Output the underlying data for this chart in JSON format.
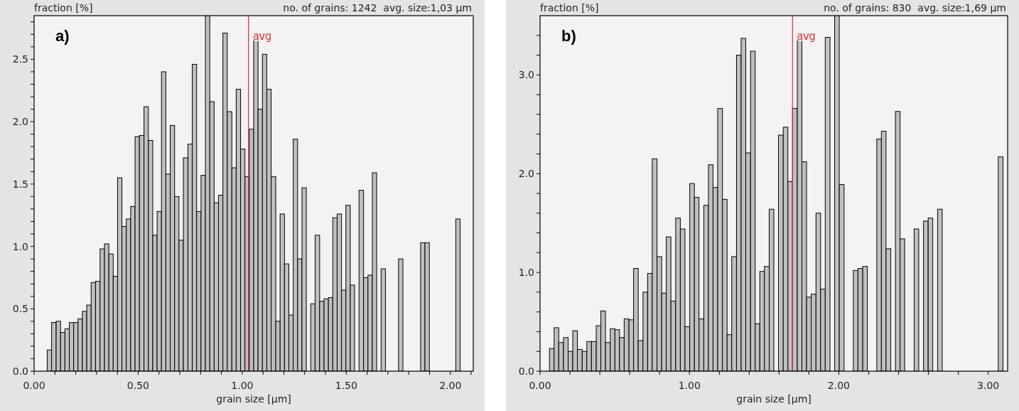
{
  "chart_data": [
    {
      "type": "histogram",
      "ylabel": "fraction [%]",
      "subtitle": "no. of grains: 1242  avg. size:1,03 µm",
      "xlabel": "grain size [µm]",
      "annotations": [
        "a)"
      ],
      "color": "#c0c0c0",
      "bins": [
        0.063,
        0.084,
        0.106,
        0.127,
        0.148,
        0.169,
        0.19,
        0.211,
        0.232,
        0.253,
        0.274,
        0.295,
        0.317,
        0.338,
        0.359,
        0.38,
        0.401,
        0.422,
        0.443,
        0.464,
        0.485,
        0.506,
        0.528,
        0.549,
        0.57,
        0.591,
        0.612,
        0.633,
        0.654,
        0.675,
        0.696,
        0.717,
        0.739,
        0.76,
        0.781,
        0.802,
        0.823,
        0.844,
        0.865,
        0.886,
        0.907,
        0.928,
        0.95,
        0.971,
        0.992,
        1.013,
        1.034,
        1.055,
        1.076,
        1.097,
        1.118,
        1.139,
        1.161,
        1.182,
        1.203,
        1.224,
        1.245,
        1.266,
        1.287,
        1.308,
        1.329,
        1.35,
        1.372,
        1.393,
        1.414,
        1.435,
        1.456,
        1.477,
        1.498,
        1.519,
        1.54,
        1.561,
        1.583,
        1.604,
        1.625,
        1.646,
        1.667,
        1.688,
        1.709,
        1.73,
        1.751,
        1.772,
        1.794,
        1.815,
        1.836,
        1.857,
        1.878,
        1.899,
        1.92,
        1.941,
        1.962,
        1.983,
        2.005,
        2.026,
        2.047
      ],
      "values": [
        0.17,
        0.39,
        0.4,
        0.31,
        0.34,
        0.39,
        0.39,
        0.42,
        0.48,
        0.53,
        0.71,
        0.72,
        0.98,
        1.02,
        0.94,
        0.76,
        1.55,
        1.16,
        1.22,
        1.32,
        1.88,
        1.89,
        2.12,
        1.85,
        1.09,
        1.28,
        2.4,
        1.58,
        1.97,
        1.4,
        1.05,
        1.71,
        1.82,
        2.46,
        1.28,
        1.57,
        2.85,
        2.16,
        1.35,
        1.41,
        2.71,
        2.08,
        1.63,
        2.26,
        1.78,
        1.56,
        1.94,
        2.66,
        2.1,
        2.54,
        2.26,
        1.56,
        0.4,
        1.26,
        0.86,
        0.45,
        1.86,
        0.9,
        1.47,
        0,
        0.54,
        1.09,
        0.56,
        0.58,
        0.59,
        1.23,
        1.26,
        0.65,
        1.33,
        0.69,
        0,
        1.45,
        0.75,
        0.77,
        1.59,
        0,
        0.82,
        0,
        0,
        0,
        0.9,
        0,
        0,
        0,
        0,
        1.03,
        1.03,
        0,
        0,
        0,
        0,
        0,
        0,
        1.22
      ],
      "xlim": [
        0,
        2.11
      ],
      "ylim": [
        0,
        2.85
      ],
      "xticks": [
        {
          "value": 0,
          "label": "0.00"
        },
        {
          "value": 0.1,
          "label": null
        },
        {
          "value": 0.2,
          "label": null
        },
        {
          "value": 0.3,
          "label": null
        },
        {
          "value": 0.4,
          "label": null
        },
        {
          "value": 0.5,
          "label": "0.50"
        },
        {
          "value": 0.6,
          "label": null
        },
        {
          "value": 0.7,
          "label": null
        },
        {
          "value": 0.8,
          "label": null
        },
        {
          "value": 0.9,
          "label": null
        },
        {
          "value": 1,
          "label": "1.00"
        },
        {
          "value": 1.1,
          "label": null
        },
        {
          "value": 1.2,
          "label": null
        },
        {
          "value": 1.3,
          "label": null
        },
        {
          "value": 1.4,
          "label": null
        },
        {
          "value": 1.5,
          "label": "1.50"
        },
        {
          "value": 1.6,
          "label": null
        },
        {
          "value": 1.7,
          "label": null
        },
        {
          "value": 1.8,
          "label": null
        },
        {
          "value": 1.9,
          "label": null
        },
        {
          "value": 2,
          "label": "2.00"
        },
        {
          "value": 2.1,
          "label": null
        }
      ],
      "yticks": [
        {
          "value": 0,
          "label": "0.0"
        },
        {
          "value": 0.1,
          "label": null
        },
        {
          "value": 0.2,
          "label": null
        },
        {
          "value": 0.3,
          "label": null
        },
        {
          "value": 0.4,
          "label": null
        },
        {
          "value": 0.5,
          "label": "0.5"
        },
        {
          "value": 0.6,
          "label": null
        },
        {
          "value": 0.7,
          "label": null
        },
        {
          "value": 0.8,
          "label": null
        },
        {
          "value": 0.9,
          "label": null
        },
        {
          "value": 1,
          "label": "1.0"
        },
        {
          "value": 1.1,
          "label": null
        },
        {
          "value": 1.2,
          "label": null
        },
        {
          "value": 1.3,
          "label": null
        },
        {
          "value": 1.4,
          "label": null
        },
        {
          "value": 1.5,
          "label": "1.5"
        },
        {
          "value": 1.6,
          "label": null
        },
        {
          "value": 1.7,
          "label": null
        },
        {
          "value": 1.8,
          "label": null
        },
        {
          "value": 1.9,
          "label": null
        },
        {
          "value": 2,
          "label": "2.0"
        },
        {
          "value": 2.1,
          "label": null
        },
        {
          "value": 2.2,
          "label": null
        },
        {
          "value": 2.3,
          "label": null
        },
        {
          "value": 2.4,
          "label": null
        },
        {
          "value": 2.5,
          "label": "2.5"
        },
        {
          "value": 2.6,
          "label": null
        },
        {
          "value": 2.7,
          "label": null
        },
        {
          "value": 2.8,
          "label": null
        }
      ],
      "ref_lines": [
        {
          "axis": "x",
          "value": 1.03,
          "label": "avg",
          "color": "#e03030"
        }
      ]
    },
    {
      "type": "histogram",
      "ylabel": "fraction [%]",
      "subtitle": "no. of grains: 830  avg. size:1,69 µm",
      "xlabel": "grain size [µm]",
      "annotations": [
        "b)"
      ],
      "color": "#c0c0c0",
      "bins": [
        0.063,
        0.094,
        0.125,
        0.157,
        0.188,
        0.219,
        0.25,
        0.282,
        0.313,
        0.344,
        0.376,
        0.407,
        0.438,
        0.47,
        0.501,
        0.532,
        0.563,
        0.595,
        0.626,
        0.657,
        0.689,
        0.72,
        0.751,
        0.783,
        0.814,
        0.845,
        0.876,
        0.908,
        0.939,
        0.97,
        1.002,
        1.033,
        1.064,
        1.096,
        1.127,
        1.158,
        1.189,
        1.221,
        1.252,
        1.283,
        1.315,
        1.346,
        1.377,
        1.409,
        1.44,
        1.471,
        1.502,
        1.534,
        1.565,
        1.596,
        1.628,
        1.659,
        1.69,
        1.722,
        1.753,
        1.784,
        1.815,
        1.847,
        1.878,
        1.909,
        1.941,
        1.972,
        2.003,
        2.035,
        2.066,
        2.097,
        2.128,
        2.16,
        2.191,
        2.222,
        2.254,
        2.285,
        2.316,
        2.348,
        2.379,
        2.41,
        2.441,
        2.473,
        2.504,
        2.535,
        2.567,
        2.598,
        2.629,
        2.661,
        2.692,
        2.723,
        2.754,
        2.786,
        2.817,
        2.848,
        2.88,
        2.911,
        2.942,
        2.974,
        3.005,
        3.036,
        3.067,
        3.099
      ],
      "values": [
        0.23,
        0.44,
        0.29,
        0.34,
        0.2,
        0.41,
        0.22,
        0.2,
        0.3,
        0.3,
        0.46,
        0.61,
        0.29,
        0.43,
        0.42,
        0.34,
        0.53,
        0.52,
        1.04,
        0.31,
        0.8,
        0.99,
        2.15,
        1.16,
        0.79,
        1.36,
        0.71,
        1.55,
        1.44,
        0.45,
        1.9,
        1.76,
        0.53,
        1.68,
        2.09,
        1.86,
        2.66,
        1.74,
        0.37,
        1.16,
        3.2,
        3.37,
        2.21,
        3.24,
        0.48,
        1.01,
        1.06,
        1.64,
        0,
        2.39,
        2.47,
        1.92,
        2.66,
        3.42,
        2.12,
        0.75,
        0.78,
        1.6,
        0.83,
        3.38,
        0,
        3.6,
        1.89,
        0,
        0,
        1.02,
        1.04,
        1.06,
        0,
        0,
        2.35,
        2.43,
        1.24,
        0,
        2.63,
        1.34,
        0,
        0,
        1.44,
        0,
        1.52,
        1.55,
        0,
        1.64,
        0,
        0,
        0,
        0,
        0,
        0,
        0,
        0,
        0,
        0,
        0,
        0,
        2.17
      ],
      "xlim": [
        0,
        3.13
      ],
      "ylim": [
        0,
        3.6
      ],
      "xticks": [
        {
          "value": 0,
          "label": "0.00"
        },
        {
          "value": 0.2,
          "label": null
        },
        {
          "value": 0.4,
          "label": null
        },
        {
          "value": 0.6,
          "label": null
        },
        {
          "value": 0.8,
          "label": null
        },
        {
          "value": 1,
          "label": "1.00"
        },
        {
          "value": 1.2,
          "label": null
        },
        {
          "value": 1.4,
          "label": null
        },
        {
          "value": 1.6,
          "label": null
        },
        {
          "value": 1.8,
          "label": null
        },
        {
          "value": 2,
          "label": "2.00"
        },
        {
          "value": 2.2,
          "label": null
        },
        {
          "value": 2.4,
          "label": null
        },
        {
          "value": 2.6,
          "label": null
        },
        {
          "value": 2.8,
          "label": null
        },
        {
          "value": 3,
          "label": "3.00"
        }
      ],
      "yticks": [
        {
          "value": 0,
          "label": "0.0"
        },
        {
          "value": 0.2,
          "label": null
        },
        {
          "value": 0.4,
          "label": null
        },
        {
          "value": 0.6,
          "label": null
        },
        {
          "value": 0.8,
          "label": null
        },
        {
          "value": 1,
          "label": "1.0"
        },
        {
          "value": 1.2,
          "label": null
        },
        {
          "value": 1.4,
          "label": null
        },
        {
          "value": 1.6,
          "label": null
        },
        {
          "value": 1.8,
          "label": null
        },
        {
          "value": 2,
          "label": "2.0"
        },
        {
          "value": 2.2,
          "label": null
        },
        {
          "value": 2.4,
          "label": null
        },
        {
          "value": 2.6,
          "label": null
        },
        {
          "value": 2.8,
          "label": null
        },
        {
          "value": 3,
          "label": "3.0"
        },
        {
          "value": 3.2,
          "label": null
        },
        {
          "value": 3.4,
          "label": null
        }
      ],
      "ref_lines": [
        {
          "axis": "x",
          "value": 1.69,
          "label": "avg",
          "color": "#e03030"
        }
      ]
    }
  ]
}
